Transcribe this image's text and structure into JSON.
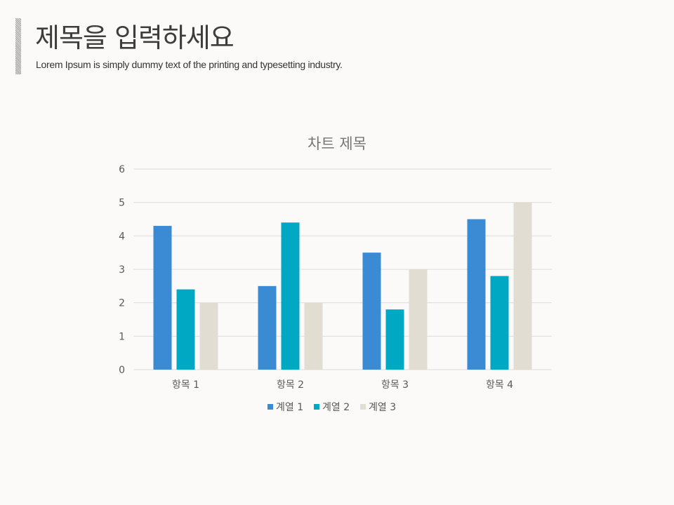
{
  "slide": {
    "title": "제목을 입력하세요",
    "subtitle": "Lorem Ipsum is simply dummy text of the printing and typesetting industry."
  },
  "colors": {
    "background": "#fbfaf8",
    "series": [
      "#3a8ad4",
      "#00a8c4",
      "#e2ddd3"
    ],
    "grid": "#dcdcdc"
  },
  "chart_data": {
    "type": "bar",
    "title": "차트 제목",
    "xlabel": "",
    "ylabel": "",
    "categories": [
      "항목 1",
      "항목 2",
      "항목 3",
      "항목 4"
    ],
    "series": [
      {
        "name": "계열 1",
        "values": [
          4.3,
          2.5,
          3.5,
          4.5
        ]
      },
      {
        "name": "계열 2",
        "values": [
          2.4,
          4.4,
          1.8,
          2.8
        ]
      },
      {
        "name": "계열 3",
        "values": [
          2,
          2,
          3,
          5
        ]
      }
    ],
    "ylim": [
      0,
      6
    ],
    "yticks": [
      0,
      1,
      2,
      3,
      4,
      5,
      6
    ],
    "grid": true,
    "legend": "bottom"
  }
}
